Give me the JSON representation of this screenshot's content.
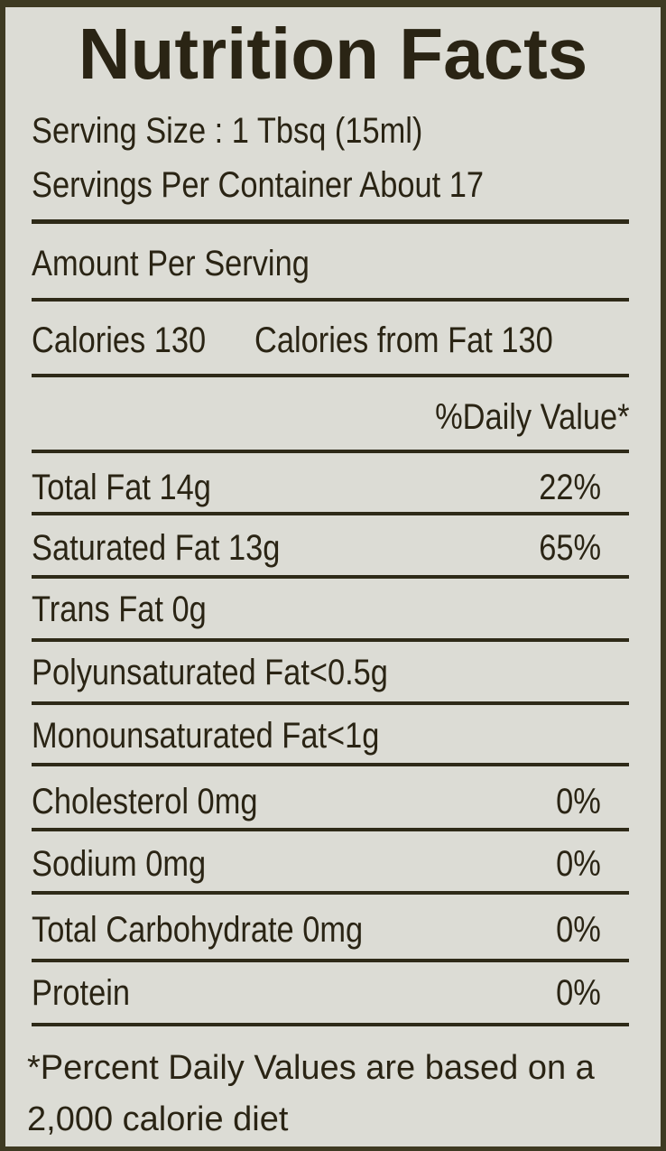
{
  "title": "Nutrition Facts",
  "serving_size": "Serving Size : 1 Tbsq (15ml)",
  "servings_per_container": "Servings Per Container About 17",
  "amount_per_serving": "Amount Per Serving",
  "calories": "Calories 130",
  "calories_from_fat": "Calories from Fat 130",
  "daily_value_header": "%Daily Value*",
  "nutrients": [
    {
      "label": "Total Fat 14g",
      "dv": "22%"
    },
    {
      "label": "Saturated Fat 13g",
      "dv": "65%"
    },
    {
      "label": "Trans Fat 0g",
      "dv": ""
    },
    {
      "label": "Polyunsaturated Fat<0.5g",
      "dv": ""
    },
    {
      "label": "Monounsaturated Fat<1g",
      "dv": ""
    },
    {
      "label": "Cholesterol 0mg",
      "dv": "0%"
    },
    {
      "label": "Sodium 0mg",
      "dv": "0%"
    },
    {
      "label": "Total Carbohydrate 0mg",
      "dv": "0%"
    },
    {
      "label": "Protein",
      "dv": "0%"
    }
  ],
  "footnote_line1": "*Percent Daily Values are based on a",
  "footnote_line2": "2,000 calorie diet",
  "colors": {
    "background": "#dcdcd5",
    "text": "#2a2414",
    "border": "#3e3a22"
  }
}
